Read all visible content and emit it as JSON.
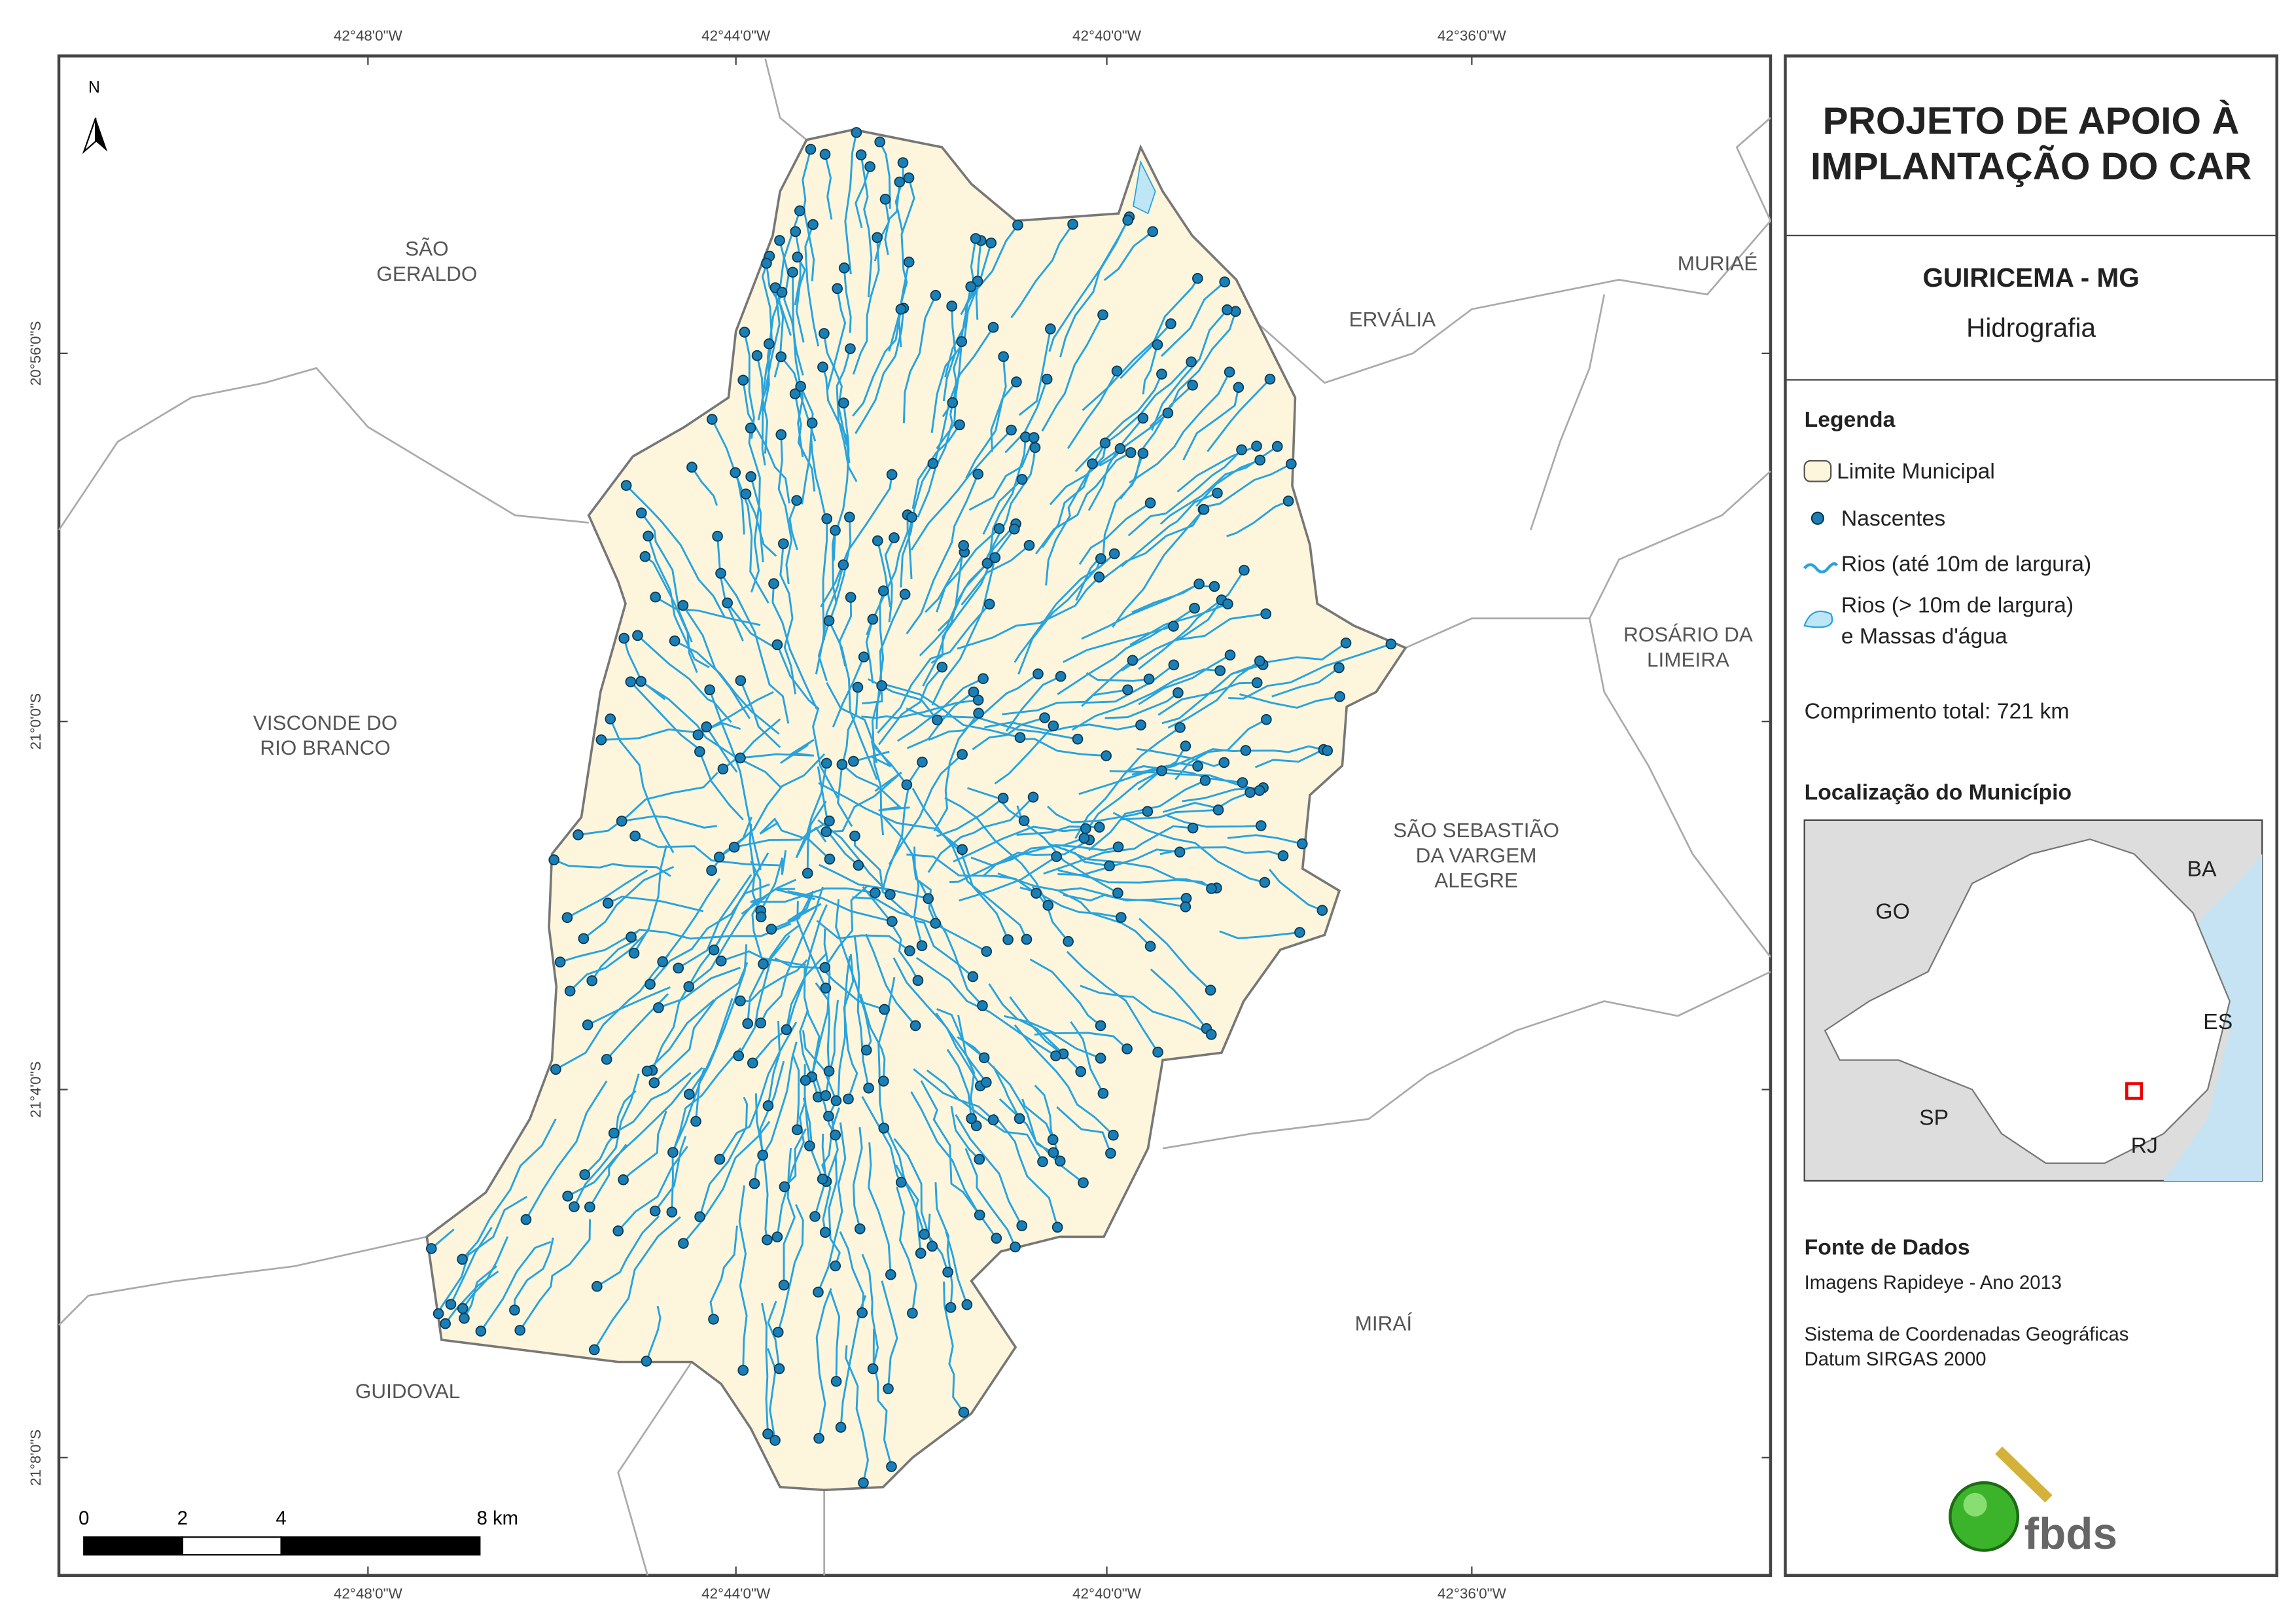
{
  "map": {
    "north": "N",
    "top_coords": [
      "42°48'0\"W",
      "42°44'0\"W",
      "42°40'0\"W",
      "42°36'0\"W"
    ],
    "left_coords": [
      "20°56'0\"S",
      "21°0'0\"S",
      "21°4'0\"S",
      "21°8'0\"S"
    ],
    "neighbors": [
      [
        "SÃO",
        "GERALDO"
      ],
      [
        "ERVÁLIA"
      ],
      [
        "MURIAÉ"
      ],
      [
        "ROSÁRIO DA",
        "LIMEIRA"
      ],
      [
        "VISCONDE DO",
        "RIO BRANCO"
      ],
      [
        "SÃO SEBASTIÃO",
        "DA VARGEM",
        "ALEGRE"
      ],
      [
        "MIRAÍ"
      ],
      [
        "GUIDOVAL"
      ]
    ],
    "scale_labels": [
      "0",
      "2",
      "4",
      "8 km"
    ]
  },
  "panel": {
    "title": [
      "PROJETO DE APOIO À",
      "IMPLANTAÇÃO DO CAR"
    ],
    "municipality": "GUIRICEMA - MG",
    "theme": "Hidrografia",
    "legend_title": "Legenda",
    "legend": [
      [
        "Limite Municipal"
      ],
      [
        "Nascentes"
      ],
      [
        "Rios (até 10m de largura)"
      ],
      [
        "Rios (> 10m de largura)",
        "e Massas d'água"
      ]
    ],
    "total_length": "Comprimento total:  721 km",
    "location_title": "Localização do Município",
    "inset_labels": [
      "BA",
      "GO",
      "ES",
      "SP",
      "RJ"
    ],
    "source_title": "Fonte de Dados",
    "source_lines": [
      "Imagens Rapideye - Ano 2013",
      "Sistema de Coordenadas Geográficas",
      "Datum SIRGAS 2000"
    ],
    "logo": "fbds"
  }
}
